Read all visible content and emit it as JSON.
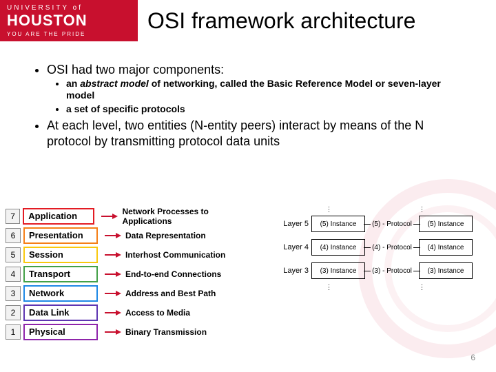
{
  "logo": {
    "line1": "UNIVERSITY of",
    "name": "HOUSTON",
    "tagline": "YOU ARE THE PRIDE"
  },
  "title": "OSI framework architecture",
  "bullets": {
    "b1": "OSI had two major components:",
    "b1a_prefix": "an ",
    "b1a_ital": "abstract model",
    "b1a_suffix": " of networking, called the Basic Reference Model or seven-layer model",
    "b1b": "a set of specific protocols",
    "b2": "At each level, two entities (N-entity peers) interact by means of the N protocol by transmitting protocol data units"
  },
  "layers": [
    {
      "num": "7",
      "name": "Application",
      "desc": "Network Processes to Applications",
      "color": "#e31b23"
    },
    {
      "num": "6",
      "name": "Presentation",
      "desc": "Data Representation",
      "color": "#f57f17"
    },
    {
      "num": "5",
      "name": "Session",
      "desc": "Interhost Communication",
      "color": "#f9c80e"
    },
    {
      "num": "4",
      "name": "Transport",
      "desc": "End-to-end Connections",
      "color": "#43a047"
    },
    {
      "num": "3",
      "name": "Network",
      "desc": "Address and Best Path",
      "color": "#1e88e5"
    },
    {
      "num": "2",
      "name": "Data Link",
      "desc": "Access to Media",
      "color": "#5e35b1"
    },
    {
      "num": "1",
      "name": "Physical",
      "desc": "Binary Transmission",
      "color": "#8e24aa"
    }
  ],
  "arrow_color": "#c8102e",
  "instances": [
    {
      "label": "Layer 5",
      "left": "(5) Instance",
      "proto": "(5) - Protocol",
      "right": "(5) Instance"
    },
    {
      "label": "Layer 4",
      "left": "(4) Instance",
      "proto": "(4) - Protocol",
      "right": "(4) Instance"
    },
    {
      "label": "Layer 3",
      "left": "(3) Instance",
      "proto": "(3) - Protocol",
      "right": "(3) Instance"
    }
  ],
  "page_number": "6",
  "colors": {
    "brand_red": "#c8102e",
    "bg": "#ffffff"
  }
}
